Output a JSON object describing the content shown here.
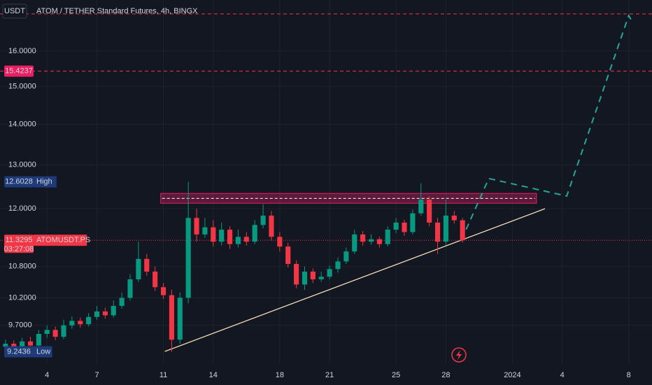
{
  "chart_data": {
    "type": "candlestick",
    "title": "ATOM / TETHER Standard Futures, 4h, BINGX",
    "currency": "USDT",
    "log_scale": true,
    "grid": true,
    "up_color": "#089981",
    "down_color": "#f23645",
    "x": [
      0.5,
      1,
      1.5,
      2,
      2.5,
      3,
      3.5,
      4,
      4.5,
      5,
      5.5,
      6,
      6.5,
      7,
      7.5,
      8,
      8.5,
      9,
      9.5,
      10,
      10.5,
      11,
      11.5,
      12,
      12.5,
      13,
      13.5,
      14,
      14.5,
      15,
      15.5,
      16,
      16.5,
      17,
      17.5,
      18,
      18.5,
      19,
      19.5,
      20,
      20.5,
      21,
      21.5,
      22,
      22.5,
      23,
      23.5,
      24,
      24.5,
      25,
      25.5,
      26,
      26.5,
      27,
      27.5,
      28
    ],
    "open": [
      9.33,
      9.38,
      9.3,
      9.42,
      9.35,
      9.55,
      9.62,
      9.5,
      9.7,
      9.78,
      9.72,
      9.85,
      9.95,
      9.88,
      10.05,
      10.2,
      10.55,
      10.95,
      10.7,
      10.4,
      10.25,
      9.45,
      10.2,
      11.8,
      11.45,
      11.6,
      11.3,
      11.55,
      11.25,
      11.4,
      11.3,
      11.65,
      11.85,
      11.4,
      11.2,
      10.85,
      10.45,
      10.7,
      10.55,
      10.6,
      10.75,
      10.9,
      11.1,
      11.45,
      11.3,
      11.35,
      11.25,
      11.55,
      11.7,
      11.5,
      11.9,
      12.2,
      11.7,
      11.3,
      11.85,
      11.75
    ],
    "high": [
      9.45,
      9.44,
      9.48,
      9.5,
      9.62,
      9.7,
      9.68,
      9.8,
      9.86,
      9.84,
      9.92,
      10.05,
      10.02,
      10.15,
      10.3,
      10.65,
      11.3,
      11.05,
      10.8,
      10.48,
      10.35,
      10.3,
      12.6028,
      12.0,
      11.8,
      11.75,
      11.7,
      11.62,
      11.55,
      11.5,
      11.75,
      12.1,
      11.95,
      11.5,
      11.28,
      10.92,
      10.8,
      10.76,
      10.7,
      10.82,
      10.98,
      11.18,
      11.55,
      11.52,
      11.45,
      11.4,
      11.62,
      11.8,
      11.76,
      11.98,
      12.57,
      12.28,
      11.8,
      12.2,
      11.95,
      11.8
    ],
    "low": [
      9.26,
      9.25,
      9.26,
      9.3,
      9.32,
      9.48,
      9.44,
      9.46,
      9.64,
      9.66,
      9.68,
      9.8,
      9.82,
      9.84,
      10.0,
      10.15,
      10.5,
      10.62,
      10.33,
      10.18,
      9.2436,
      9.38,
      10.1,
      11.3,
      11.38,
      11.2,
      11.22,
      11.15,
      11.18,
      11.22,
      11.25,
      11.58,
      11.32,
      11.1,
      10.78,
      10.38,
      10.35,
      10.48,
      10.5,
      10.55,
      10.68,
      10.85,
      11.05,
      11.22,
      11.24,
      11.18,
      11.2,
      11.48,
      11.42,
      11.45,
      11.85,
      11.62,
      11.05,
      11.22,
      11.68,
      11.28
    ],
    "close": [
      9.38,
      9.3,
      9.42,
      9.35,
      9.55,
      9.62,
      9.5,
      9.7,
      9.78,
      9.72,
      9.85,
      9.95,
      9.88,
      10.05,
      10.2,
      10.55,
      10.95,
      10.7,
      10.4,
      10.25,
      9.45,
      10.2,
      11.8,
      11.45,
      11.6,
      11.3,
      11.55,
      11.25,
      11.4,
      11.3,
      11.65,
      11.85,
      11.4,
      11.2,
      10.85,
      10.45,
      10.7,
      10.55,
      10.6,
      10.75,
      10.9,
      11.1,
      11.45,
      11.3,
      11.35,
      11.25,
      11.55,
      11.7,
      11.5,
      11.9,
      12.2,
      11.7,
      11.3,
      11.85,
      11.75,
      11.3295
    ],
    "xlim": [
      0.17,
      39.4
    ],
    "ylim": [
      9.04,
      17.56
    ],
    "yticks": [
      {
        "value": 16,
        "label": "16.0000"
      },
      {
        "value": 15,
        "label": "15.0000"
      },
      {
        "value": 14,
        "label": "14.0000"
      },
      {
        "value": 13,
        "label": "13.0000"
      },
      {
        "value": 12,
        "label": "12.0000"
      },
      {
        "value": 10.8,
        "label": "10.8000"
      },
      {
        "value": 10.2,
        "label": "10.2000"
      },
      {
        "value": 9.7,
        "label": "9.7000"
      }
    ],
    "xticks": [
      {
        "value": 3,
        "label": "4"
      },
      {
        "value": 6,
        "label": "7"
      },
      {
        "value": 10,
        "label": "11"
      },
      {
        "value": 13,
        "label": "14"
      },
      {
        "value": 17,
        "label": "18"
      },
      {
        "value": 20,
        "label": "21"
      },
      {
        "value": 24,
        "label": "25"
      },
      {
        "value": 27,
        "label": "28"
      },
      {
        "value": 31,
        "label": "2024"
      },
      {
        "value": 34,
        "label": "4"
      },
      {
        "value": 38,
        "label": "8"
      }
    ],
    "markers": [
      {
        "value": 15.4237,
        "label": "15.4237"
      },
      {
        "value": 12.6028,
        "label": "12.6028",
        "tag": "High"
      },
      {
        "value": 11.3295,
        "label": "11.3295",
        "tag": "ATOMUSDT.PS",
        "countdown": "03:27:08"
      },
      {
        "value": 9.2436,
        "label": "9.2436",
        "tag": "Low"
      }
    ],
    "drawings": {
      "hlines": [
        17.12,
        15.4237
      ],
      "zone": {
        "x": [
          9.84,
          32.45
        ],
        "y": [
          12.12,
          12.34
        ]
      },
      "trendline": {
        "x": [
          10.09,
          32.96
        ],
        "y": [
          9.25,
          12.0
        ]
      },
      "projection": {
        "x": [
          27.94,
          29.58,
          34.27,
          38.0,
          38.23
        ],
        "y": [
          11.34,
          12.68,
          12.28,
          17.07,
          16.86
        ]
      }
    }
  }
}
